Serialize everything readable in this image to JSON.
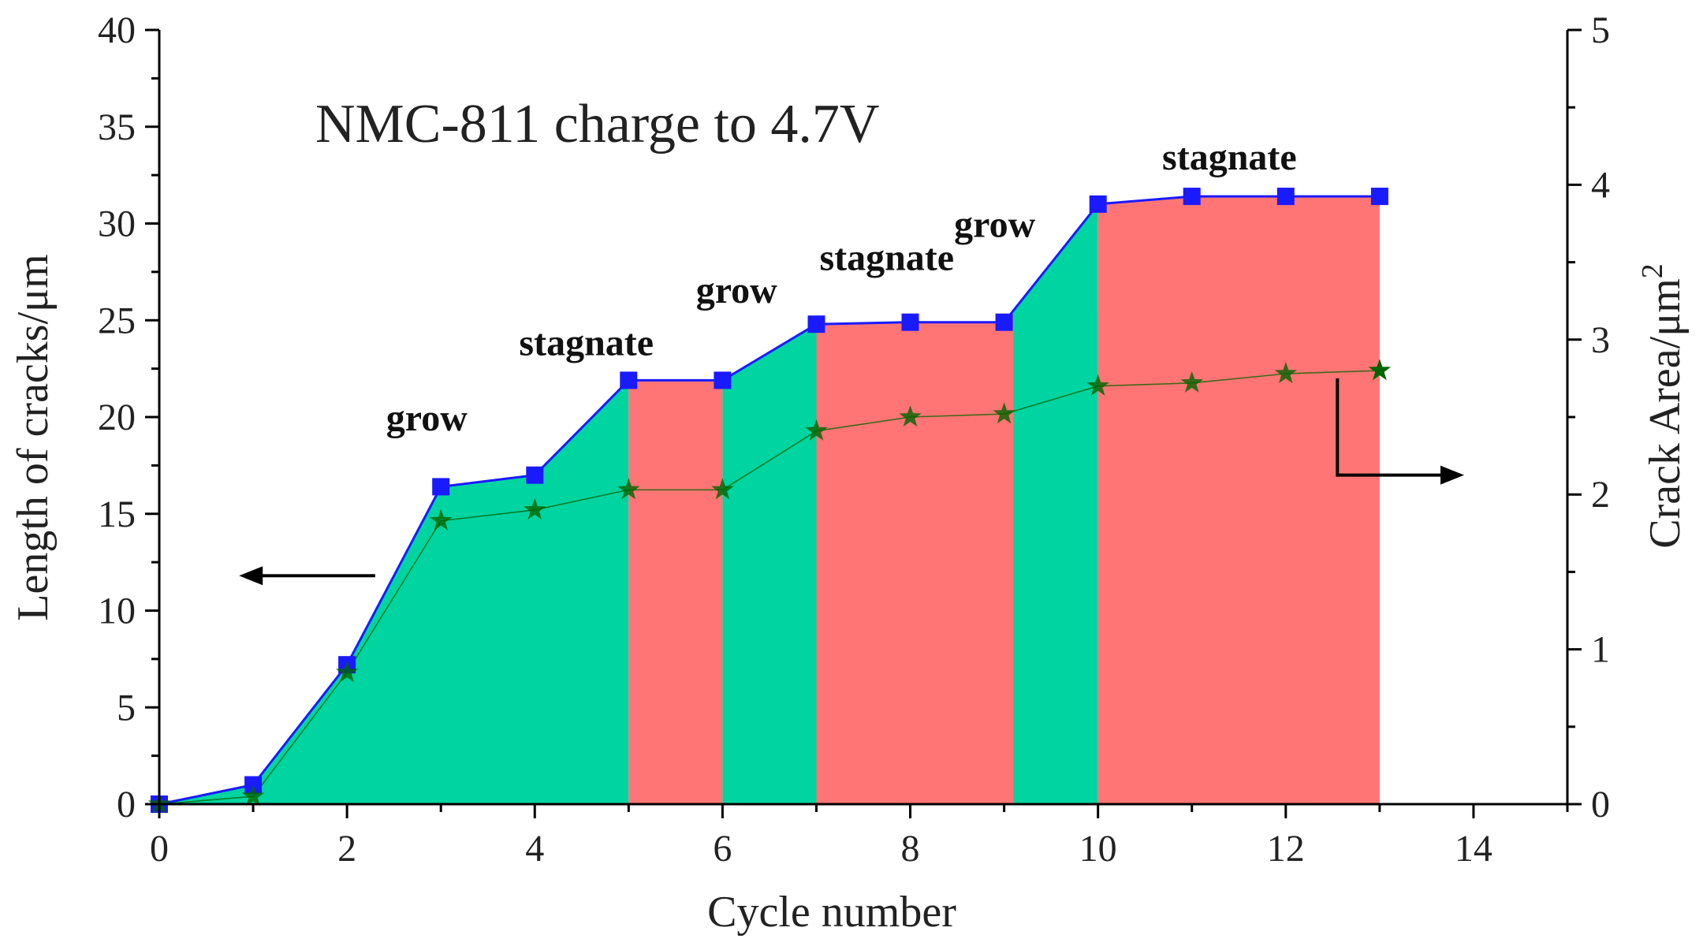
{
  "chart_data": {
    "type": "area",
    "title": "NMC-811 charge to 4.7V",
    "xlabel": "Cycle number",
    "ylabel_left": "Length of cracks/μm",
    "ylabel_right_base": "Crack Area/μm",
    "ylabel_right_sup": "2",
    "xlim": [
      0,
      15
    ],
    "ylim_left": [
      0,
      40
    ],
    "ylim_right": [
      0,
      5
    ],
    "x_ticks": [
      "0",
      "2",
      "4",
      "6",
      "8",
      "10",
      "12",
      "14"
    ],
    "y_left_ticks": [
      "0",
      "5",
      "10",
      "15",
      "20",
      "25",
      "30",
      "35",
      "40"
    ],
    "y_right_ticks": [
      "0",
      "1",
      "2",
      "3",
      "4",
      "5"
    ],
    "series": [
      {
        "name": "Length of cracks",
        "axis": "left",
        "marker": "square",
        "color": "#1a1aff",
        "x": [
          0,
          1,
          2,
          3,
          4,
          5,
          6,
          7,
          8,
          9,
          10,
          11,
          12,
          13
        ],
        "values": [
          0,
          1.0,
          7.2,
          16.4,
          17.0,
          21.9,
          21.9,
          24.8,
          24.9,
          24.9,
          31.0,
          31.4,
          31.4,
          31.4
        ]
      },
      {
        "name": "Crack Area",
        "axis": "right",
        "marker": "star",
        "color": "#006400",
        "x": [
          0,
          1,
          2,
          3,
          4,
          5,
          6,
          7,
          8,
          9,
          10,
          11,
          12,
          13
        ],
        "values": [
          0,
          0.05,
          0.85,
          1.83,
          1.9,
          2.03,
          2.03,
          2.41,
          2.5,
          2.52,
          2.7,
          2.72,
          2.78,
          2.8
        ]
      }
    ],
    "phases": [
      {
        "label": "grow",
        "x_start": 0,
        "x_end": 5,
        "color": "#00d4a0"
      },
      {
        "label": "stagnate",
        "x_start": 5,
        "x_end": 6,
        "color": "#ff7575"
      },
      {
        "label": "grow",
        "x_start": 6,
        "x_end": 7,
        "color": "#00d4a0"
      },
      {
        "label": "stagnate",
        "x_start": 7,
        "x_end": 9.1,
        "color": "#ff7575"
      },
      {
        "label": "grow",
        "x_start": 9.1,
        "x_end": 10,
        "color": "#00d4a0"
      },
      {
        "label": "stagnate",
        "x_start": 10,
        "x_end": 13,
        "color": "#ff7575"
      }
    ],
    "annotations": [
      {
        "text": "grow",
        "x": 2.85,
        "y": 19.3
      },
      {
        "text": "stagnate",
        "x": 4.55,
        "y": 23.2
      },
      {
        "text": "grow",
        "x": 6.15,
        "y": 25.9
      },
      {
        "text": "stagnate",
        "x": 7.75,
        "y": 27.6
      },
      {
        "text": "grow",
        "x": 8.9,
        "y": 29.3
      },
      {
        "text": "stagnate",
        "x": 11.4,
        "y": 32.8
      }
    ],
    "arrows": [
      {
        "side": "left",
        "direction": "left",
        "x_from": 2.3,
        "x_to": 0.85,
        "y": 11.8
      },
      {
        "side": "right",
        "direction": "right",
        "x_corner": 12.55,
        "y_top": 22.0,
        "y_bottom": 17.0,
        "x_to": 13.9
      }
    ]
  }
}
